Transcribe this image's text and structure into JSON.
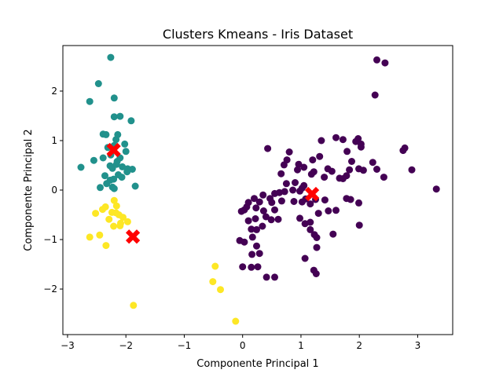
{
  "chart_data": {
    "type": "scatter",
    "title": "Clusters Kmeans - Iris Dataset",
    "xlabel": "Componente Principal 1",
    "ylabel": "Componente Principal 2",
    "xlim": [
      -3.08,
      3.6
    ],
    "ylim": [
      -2.92,
      2.92
    ],
    "xticks": [
      -3,
      -2,
      -1,
      0,
      1,
      2,
      3
    ],
    "yticks": [
      -2,
      -1,
      0,
      1,
      2
    ],
    "grid": false,
    "colors": {
      "cluster_0": "#440154",
      "cluster_1": "#21918c",
      "cluster_2": "#fde725",
      "centroid": "#ff0000"
    },
    "series": [
      {
        "cluster": 0,
        "color": "#440154",
        "points": [
          [
            0.43,
            0.84
          ],
          [
            0.8,
            0.77
          ],
          [
            0.71,
            0.51
          ],
          [
            0.96,
            0.52
          ],
          [
            1.2,
            0.61
          ],
          [
            1.32,
            0.68
          ],
          [
            1.35,
            1.0
          ],
          [
            1.6,
            1.06
          ],
          [
            1.72,
            1.02
          ],
          [
            1.79,
            0.78
          ],
          [
            1.94,
            0.98
          ],
          [
            1.98,
            1.04
          ],
          [
            2.03,
            0.93
          ],
          [
            2.03,
            0.87
          ],
          [
            2.3,
            2.63
          ],
          [
            2.44,
            2.57
          ],
          [
            2.27,
            1.92
          ],
          [
            2.75,
            0.8
          ],
          [
            2.78,
            0.85
          ],
          [
            2.9,
            0.41
          ],
          [
            3.32,
            0.02
          ],
          [
            2.23,
            0.56
          ],
          [
            2.3,
            0.42
          ],
          [
            2.42,
            0.26
          ],
          [
            1.87,
            0.58
          ],
          [
            1.99,
            0.43
          ],
          [
            2.07,
            0.4
          ],
          [
            1.83,
            0.41
          ],
          [
            1.78,
            0.29
          ],
          [
            1.72,
            0.23
          ],
          [
            1.53,
            0.38
          ],
          [
            1.66,
            0.24
          ],
          [
            1.46,
            0.43
          ],
          [
            1.4,
            0.26
          ],
          [
            1.22,
            0.37
          ],
          [
            1.18,
            0.32
          ],
          [
            1.05,
            0.46
          ],
          [
            0.94,
            0.41
          ],
          [
            0.76,
            0.61
          ],
          [
            0.66,
            0.33
          ],
          [
            0.75,
            0.13
          ],
          [
            0.86,
            0.0
          ],
          [
            0.98,
            -0.02
          ],
          [
            1.05,
            0.09
          ],
          [
            0.9,
            0.15
          ],
          [
            0.63,
            -0.05
          ],
          [
            0.55,
            -0.07
          ],
          [
            0.47,
            -0.17
          ],
          [
            0.35,
            -0.1
          ],
          [
            0.29,
            -0.24
          ],
          [
            0.2,
            -0.17
          ],
          [
            0.1,
            -0.25
          ],
          [
            0.03,
            -0.4
          ],
          [
            0.07,
            -0.34
          ],
          [
            0.23,
            -0.36
          ],
          [
            0.22,
            -0.58
          ],
          [
            0.36,
            -0.42
          ],
          [
            0.5,
            -0.25
          ],
          [
            0.55,
            -0.4
          ],
          [
            0.67,
            -0.22
          ],
          [
            0.72,
            -0.03
          ],
          [
            0.88,
            -0.23
          ],
          [
            1.02,
            -0.24
          ],
          [
            1.08,
            -0.18
          ],
          [
            1.16,
            -0.28
          ],
          [
            1.25,
            -0.19
          ],
          [
            1.3,
            -0.47
          ],
          [
            1.41,
            -0.2
          ],
          [
            1.47,
            -0.42
          ],
          [
            1.6,
            -0.41
          ],
          [
            1.78,
            -0.17
          ],
          [
            1.85,
            -0.19
          ],
          [
            1.99,
            -0.26
          ],
          [
            2.0,
            -0.71
          ],
          [
            1.55,
            -0.89
          ],
          [
            1.27,
            -0.96
          ],
          [
            1.23,
            -0.9
          ],
          [
            1.27,
            -1.16
          ],
          [
            1.07,
            -1.38
          ],
          [
            1.16,
            -0.8
          ],
          [
            1.07,
            -0.68
          ],
          [
            0.98,
            -0.57
          ],
          [
            0.61,
            -0.59
          ],
          [
            0.49,
            -0.6
          ],
          [
            0.34,
            -0.73
          ],
          [
            0.24,
            -0.8
          ],
          [
            0.15,
            -0.79
          ],
          [
            0.17,
            -0.95
          ],
          [
            0.03,
            -1.05
          ],
          [
            0.24,
            -1.13
          ],
          [
            0.29,
            -1.28
          ],
          [
            0.16,
            -1.3
          ],
          [
            0.26,
            -1.55
          ],
          [
            0.15,
            -1.56
          ],
          [
            0.0,
            -1.55
          ],
          [
            0.41,
            -1.76
          ],
          [
            0.55,
            -1.76
          ],
          [
            1.22,
            -1.62
          ],
          [
            1.26,
            -1.69
          ],
          [
            -0.02,
            -0.43
          ],
          [
            1.16,
            -0.65
          ],
          [
            0.4,
            -0.54
          ],
          [
            0.1,
            -0.62
          ],
          [
            -0.05,
            -1.02
          ],
          [
            1.02,
            0.04
          ]
        ]
      },
      {
        "cluster": 1,
        "color": "#21918c",
        "points": [
          [
            -2.26,
            2.68
          ],
          [
            -2.47,
            2.15
          ],
          [
            -2.62,
            1.79
          ],
          [
            -2.2,
            1.86
          ],
          [
            -2.2,
            1.48
          ],
          [
            -2.1,
            1.49
          ],
          [
            -1.91,
            1.4
          ],
          [
            -2.39,
            1.13
          ],
          [
            -2.34,
            1.12
          ],
          [
            -2.17,
            1.02
          ],
          [
            -2.14,
            1.12
          ],
          [
            -2.2,
            0.9
          ],
          [
            -2.31,
            0.86
          ],
          [
            -2.02,
            0.93
          ],
          [
            -2.0,
            0.78
          ],
          [
            -2.26,
            0.71
          ],
          [
            -2.1,
            0.65
          ],
          [
            -2.39,
            0.65
          ],
          [
            -2.55,
            0.6
          ],
          [
            -2.77,
            0.46
          ],
          [
            -2.27,
            0.49
          ],
          [
            -2.23,
            0.44
          ],
          [
            -2.16,
            0.52
          ],
          [
            -2.06,
            0.47
          ],
          [
            -1.97,
            0.43
          ],
          [
            -1.89,
            0.42
          ],
          [
            -1.98,
            0.37
          ],
          [
            -2.07,
            0.26
          ],
          [
            -2.13,
            0.31
          ],
          [
            -2.21,
            0.22
          ],
          [
            -2.27,
            0.2
          ],
          [
            -2.33,
            0.13
          ],
          [
            -2.23,
            0.06
          ],
          [
            -2.44,
            0.05
          ],
          [
            -2.2,
            0.03
          ],
          [
            -1.84,
            0.08
          ],
          [
            -2.36,
            0.29
          ],
          [
            -2.15,
            0.58
          ]
        ]
      },
      {
        "cluster": 2,
        "color": "#fde725",
        "points": [
          [
            -2.2,
            -0.21
          ],
          [
            -2.16,
            -0.32
          ],
          [
            -2.35,
            -0.34
          ],
          [
            -2.4,
            -0.39
          ],
          [
            -2.52,
            -0.47
          ],
          [
            -2.17,
            -0.46
          ],
          [
            -2.12,
            -0.5
          ],
          [
            -2.24,
            -0.45
          ],
          [
            -2.05,
            -0.55
          ],
          [
            -2.29,
            -0.59
          ],
          [
            -2.09,
            -0.67
          ],
          [
            -1.97,
            -0.64
          ],
          [
            -2.21,
            -0.73
          ],
          [
            -2.1,
            -0.72
          ],
          [
            -2.45,
            -0.91
          ],
          [
            -2.62,
            -0.95
          ],
          [
            -2.34,
            -1.12
          ],
          [
            -1.87,
            -2.33
          ],
          [
            -0.47,
            -1.54
          ],
          [
            -0.51,
            -1.85
          ],
          [
            -0.38,
            -2.01
          ],
          [
            -0.12,
            -2.65
          ]
        ]
      }
    ],
    "centroids": [
      {
        "cluster": 0,
        "x": 1.19,
        "y": -0.08
      },
      {
        "cluster": 1,
        "x": -2.21,
        "y": 0.81
      },
      {
        "cluster": 2,
        "x": -1.88,
        "y": -0.94
      }
    ]
  }
}
